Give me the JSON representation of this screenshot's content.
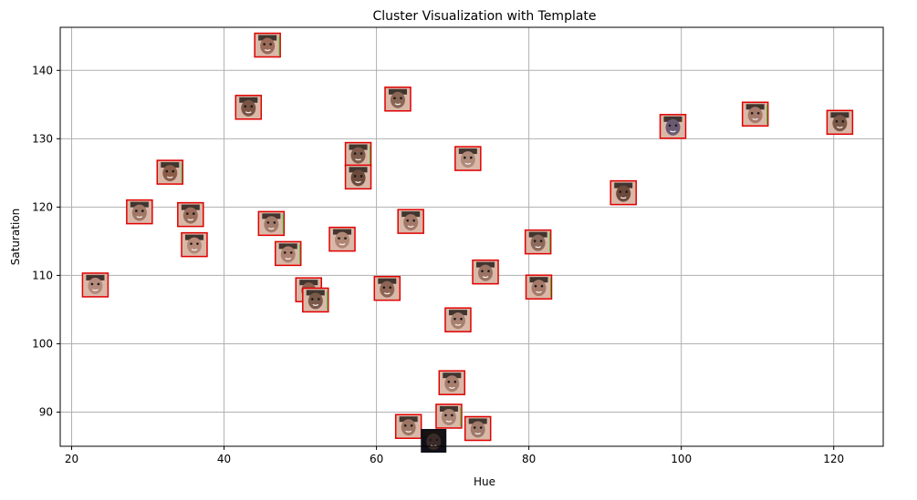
{
  "chart_data": {
    "type": "scatter",
    "title": "Cluster Visualization with Template",
    "xlabel": "Hue",
    "ylabel": "Saturation",
    "xlim": [
      18.5,
      126.5
    ],
    "ylim": [
      85,
      146.3
    ],
    "xticks": [
      20,
      40,
      60,
      80,
      100,
      120
    ],
    "yticks": [
      90,
      100,
      110,
      120,
      130,
      140
    ],
    "grid": true,
    "marker": "face-thumbnail",
    "points": [
      {
        "x": 45.7,
        "y": 143.7,
        "tone": "#9b6a58"
      },
      {
        "x": 43.2,
        "y": 134.6,
        "tone": "#7a5445"
      },
      {
        "x": 62.8,
        "y": 135.8,
        "tone": "#8a6655"
      },
      {
        "x": 57.6,
        "y": 127.7,
        "tone": "#7d5a4a"
      },
      {
        "x": 57.6,
        "y": 124.4,
        "tone": "#6c4a3c"
      },
      {
        "x": 72.0,
        "y": 127.1,
        "tone": "#b08a7a"
      },
      {
        "x": 32.9,
        "y": 125.1,
        "tone": "#8b5d48"
      },
      {
        "x": 28.9,
        "y": 119.3,
        "tone": "#a07766"
      },
      {
        "x": 35.6,
        "y": 118.9,
        "tone": "#9a6d5c"
      },
      {
        "x": 46.2,
        "y": 117.6,
        "tone": "#a37b6a"
      },
      {
        "x": 64.5,
        "y": 117.9,
        "tone": "#a37868"
      },
      {
        "x": 36.1,
        "y": 114.5,
        "tone": "#b58a78"
      },
      {
        "x": 48.4,
        "y": 113.2,
        "tone": "#ad8171"
      },
      {
        "x": 55.5,
        "y": 115.3,
        "tone": "#b08675"
      },
      {
        "x": 98.9,
        "y": 131.8,
        "tone": "#6a5a72"
      },
      {
        "x": 109.7,
        "y": 133.6,
        "tone": "#a67a6a"
      },
      {
        "x": 120.8,
        "y": 132.4,
        "tone": "#7c5848"
      },
      {
        "x": 92.4,
        "y": 122.1,
        "tone": "#6e4a3c"
      },
      {
        "x": 81.2,
        "y": 114.9,
        "tone": "#8c6a5c"
      },
      {
        "x": 23.1,
        "y": 108.6,
        "tone": "#b58a7c"
      },
      {
        "x": 51.1,
        "y": 107.9,
        "tone": "#8a6050"
      },
      {
        "x": 52.0,
        "y": 106.4,
        "tone": "#7a5a4a"
      },
      {
        "x": 61.4,
        "y": 108.1,
        "tone": "#8f6555"
      },
      {
        "x": 74.3,
        "y": 110.5,
        "tone": "#9a7363"
      },
      {
        "x": 81.3,
        "y": 108.3,
        "tone": "#a57a6a"
      },
      {
        "x": 70.7,
        "y": 103.5,
        "tone": "#a88070"
      },
      {
        "x": 69.9,
        "y": 94.3,
        "tone": "#a77d6d"
      },
      {
        "x": 69.5,
        "y": 89.4,
        "tone": "#aa8474"
      },
      {
        "x": 64.2,
        "y": 87.9,
        "tone": "#9c7564"
      },
      {
        "x": 73.3,
        "y": 87.6,
        "tone": "#a07a6a"
      },
      {
        "x": 67.5,
        "y": 85.8,
        "tone": "#3a2a28",
        "dark": true
      }
    ]
  },
  "colors": {
    "frame": "#e00000",
    "grid": "#b0b0b0",
    "axis": "#000000",
    "accent": "#30c030",
    "dark_bg": "#101018"
  }
}
